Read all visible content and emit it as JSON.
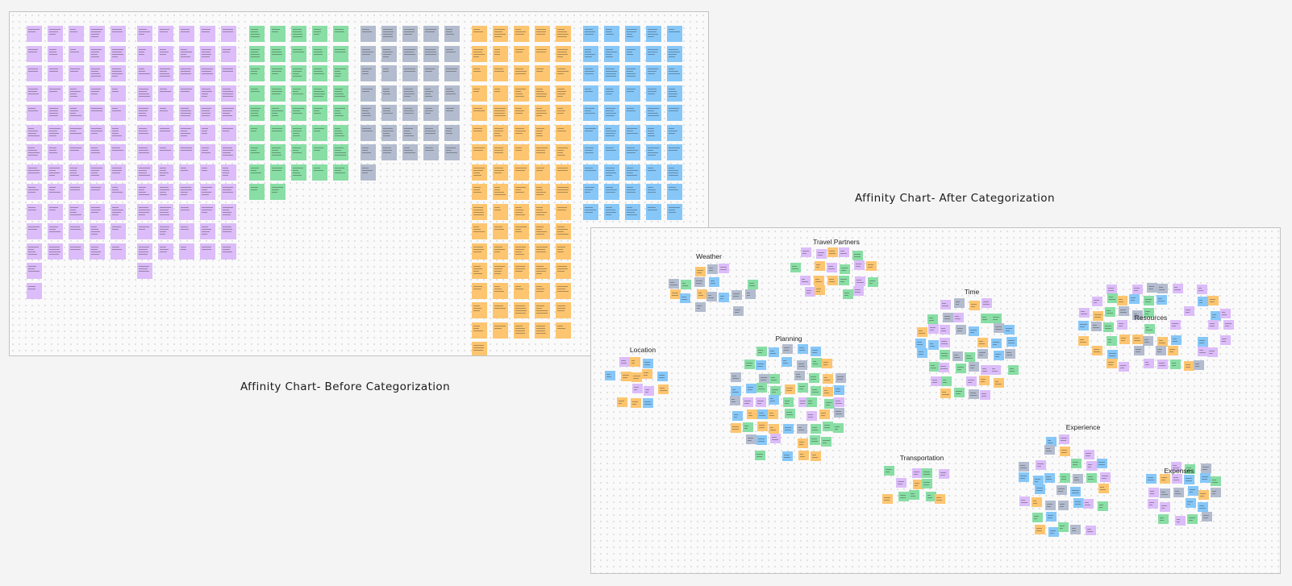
{
  "captions": {
    "before": "Affinity Chart- Before Categorization",
    "after": "Affinity Chart- After Categorization"
  },
  "colors": {
    "purple": "#dcbcf9",
    "green": "#88dea4",
    "gray": "#b3bcce",
    "orange": "#fdc56f",
    "blue": "#86c7f8"
  },
  "before_board": {
    "groups": [
      {
        "color": "purple",
        "counts": [
          14,
          12,
          12,
          12,
          12
        ]
      },
      {
        "color": "purple",
        "counts": [
          13,
          12,
          12,
          12,
          12
        ]
      },
      {
        "color": "green",
        "counts": [
          9,
          9,
          8,
          8,
          8
        ]
      },
      {
        "color": "gray",
        "counts": [
          8,
          7,
          7,
          7,
          7
        ]
      },
      {
        "color": "orange",
        "counts": [
          17,
          16,
          16,
          16,
          16
        ]
      },
      {
        "color": "blue",
        "counts": [
          10,
          10,
          10,
          10,
          10
        ]
      }
    ]
  },
  "after_board": {
    "clusters": [
      {
        "name": "weather",
        "label": "Weather"
      },
      {
        "name": "travel-partners",
        "label": "Travel Partners"
      },
      {
        "name": "time",
        "label": "Time"
      },
      {
        "name": "resources",
        "label": "Resources"
      },
      {
        "name": "location",
        "label": "Location"
      },
      {
        "name": "planning",
        "label": "Planning"
      },
      {
        "name": "experience",
        "label": "Experience"
      },
      {
        "name": "transportation",
        "label": "Transportation"
      },
      {
        "name": "expenses",
        "label": "Expenses"
      }
    ]
  }
}
